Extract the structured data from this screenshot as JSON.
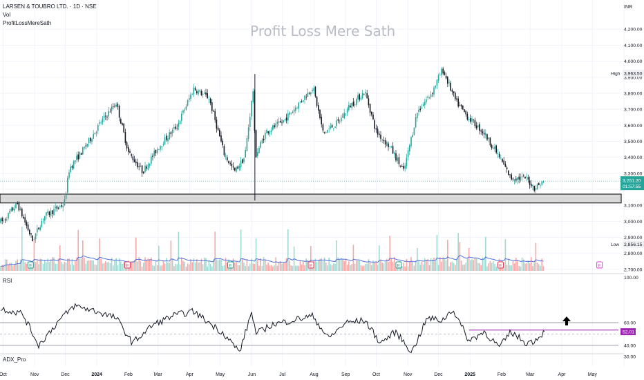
{
  "header": {
    "symbol": "LARSEN & TOUBRO LTD. · 1D · NSE",
    "vol_label": "Vol",
    "indicator_label": "ProfitLossMereSath",
    "currency": "INR",
    "watermark": "Profit Loss Mere Sath"
  },
  "rsi_pane": {
    "label": "RSI",
    "current": "52.01",
    "levels": [
      60,
      40
    ],
    "midline": 50,
    "axis_ticks": [
      "100.00",
      "60.00",
      "40.00",
      "30.00"
    ]
  },
  "adx_pane": {
    "label": "ADX_Pro"
  },
  "price_axis": {
    "ticks": [
      "4,200.00",
      "4,100.00",
      "4,000.00",
      "3,900.00",
      "3,800.00",
      "3,700.00",
      "3,600.00",
      "3,500.00",
      "3,400.00",
      "3,300.00",
      "3,100.00",
      "3,000.00",
      "2,900.00",
      "2,800.00",
      "2,700.00"
    ],
    "high_label": "High",
    "high_value": "3,963.50",
    "low_label": "Low",
    "low_value": "2,856.15",
    "last_price": "3,251.20",
    "countdown": "01:57:55"
  },
  "time_axis": {
    "labels": [
      "Oct",
      "Nov",
      "Dec",
      "2024",
      "Feb",
      "Mar",
      "Apr",
      "May",
      "Jun",
      "Jul",
      "Aug",
      "Sep",
      "Oct",
      "Nov",
      "Dec",
      "2025",
      "Feb",
      "Mar",
      "Apr",
      "May"
    ]
  },
  "events": {
    "earnings_marker": "E"
  },
  "chart_data": [
    {
      "type": "line",
      "name": "price",
      "y_range": [
        2650,
        4300
      ],
      "support_zone": [
        3115,
        3170
      ],
      "x": [
        "2023-10-01",
        "2023-10-15",
        "2023-10-30",
        "2023-11-10",
        "2023-11-30",
        "2023-12-05",
        "2023-12-20",
        "2024-01-05",
        "2024-01-20",
        "2024-02-01",
        "2024-02-15",
        "2024-03-01",
        "2024-03-20",
        "2024-04-05",
        "2024-04-20",
        "2024-05-05",
        "2024-05-15",
        "2024-05-25",
        "2024-06-03",
        "2024-06-04",
        "2024-06-15",
        "2024-07-01",
        "2024-07-15",
        "2024-07-31",
        "2024-08-10",
        "2024-08-25",
        "2024-09-05",
        "2024-09-20",
        "2024-10-01",
        "2024-10-15",
        "2024-10-28",
        "2024-11-10",
        "2024-11-25",
        "2024-12-05",
        "2024-12-18",
        "2024-12-30",
        "2025-01-15",
        "2025-01-30",
        "2025-02-10",
        "2025-02-25",
        "2025-03-05",
        "2025-03-15"
      ],
      "values": [
        3000,
        3110,
        2880,
        3030,
        3110,
        3330,
        3460,
        3620,
        3740,
        3430,
        3310,
        3460,
        3600,
        3830,
        3770,
        3420,
        3310,
        3400,
        3860,
        3400,
        3560,
        3620,
        3720,
        3840,
        3550,
        3620,
        3720,
        3810,
        3560,
        3460,
        3310,
        3680,
        3810,
        3950,
        3750,
        3650,
        3550,
        3400,
        3270,
        3270,
        3210,
        3251.2
      ]
    },
    {
      "type": "line",
      "name": "RSI",
      "y_range": [
        25,
        100
      ],
      "x": [
        "2023-10-01",
        "2023-10-20",
        "2023-11-05",
        "2023-11-25",
        "2023-12-10",
        "2024-01-01",
        "2024-01-20",
        "2024-02-05",
        "2024-02-25",
        "2024-03-15",
        "2024-04-05",
        "2024-04-20",
        "2024-05-05",
        "2024-05-20",
        "2024-06-01",
        "2024-06-05",
        "2024-06-20",
        "2024-07-10",
        "2024-07-31",
        "2024-08-15",
        "2024-09-01",
        "2024-09-20",
        "2024-10-05",
        "2024-10-20",
        "2024-11-05",
        "2024-11-20",
        "2024-12-05",
        "2024-12-15",
        "2024-12-31",
        "2025-01-15",
        "2025-01-30",
        "2025-02-10",
        "2025-02-25",
        "2025-03-05",
        "2025-03-15"
      ],
      "values": [
        72,
        68,
        40,
        62,
        75,
        70,
        64,
        42,
        58,
        66,
        70,
        60,
        50,
        34,
        70,
        50,
        58,
        62,
        66,
        46,
        60,
        62,
        42,
        52,
        34,
        64,
        62,
        72,
        44,
        52,
        38,
        52,
        42,
        44,
        52.01
      ]
    }
  ]
}
